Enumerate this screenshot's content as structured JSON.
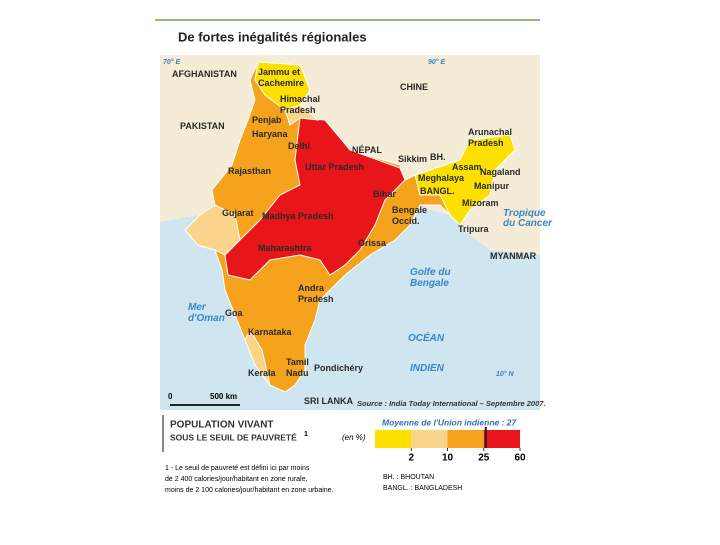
{
  "header": {
    "title": "De fortes inégalités régionales"
  },
  "map": {
    "coordinates": [
      "70° E",
      "90° E",
      "10° N"
    ],
    "labels": [
      [
        "AFGHANISTAN"
      ],
      [
        "Jammu et",
        "Cachemire"
      ],
      [
        "CHINE"
      ],
      [
        "Himachal",
        "Pradesh"
      ],
      [
        "Penjab"
      ],
      [
        "PAKISTAN"
      ],
      [
        "Haryana"
      ],
      [
        "Delhi"
      ],
      [
        "NÉPAL"
      ],
      [
        "Arunachal",
        "Pradesh"
      ],
      [
        "Uttar Pradesh"
      ],
      [
        "Sikkim"
      ],
      [
        "BH."
      ],
      [
        "Assam"
      ],
      [
        "Nagaland"
      ],
      [
        "Rajasthan"
      ],
      [
        "Meghalaya"
      ],
      [
        "Manipur"
      ],
      [
        "Bihar"
      ],
      [
        "BANGL."
      ],
      [
        "Mizoram"
      ],
      [
        "Bengale",
        "Occid."
      ],
      [
        "Gujarat"
      ],
      [
        "Madhya Pradesh"
      ],
      [
        "Tripura"
      ],
      [
        "Maharashtra"
      ],
      [
        "Orissa"
      ],
      [
        "MYANMAR"
      ],
      [
        "Golfe du",
        "Bengale"
      ],
      [
        "Andra",
        "Pradesh"
      ],
      [
        "Mer",
        "d'Oman"
      ],
      [
        "Goa"
      ],
      [
        "Karnataka"
      ],
      [
        "OCÉAN"
      ],
      [
        "INDIEN"
      ],
      [
        "Tamil",
        "Nadu"
      ],
      [
        "Kerala"
      ],
      [
        "Pondichéry"
      ],
      [
        "SRI LANKA"
      ]
    ],
    "tropic": [
      "Tropique",
      "du Cancer"
    ],
    "scale_bar": {
      "start": "0",
      "end": "500 km"
    },
    "source": "Source : India Today International – Septembre 2007."
  },
  "legend": {
    "title": "POPULATION VIVANT",
    "subtitle": "SOUS LE SEUIL DE PAUVRETÉ",
    "note_mark": "1",
    "unit": "(en %)",
    "breaks": [
      2,
      10,
      25,
      60
    ],
    "colors": [
      "#fde000",
      "#f9d48a",
      "#f5a21c",
      "#e8161b"
    ],
    "average": {
      "label": "Moyenne de l'Union indienne : 27",
      "value": 27
    }
  },
  "footnote": [
    "1 - Le seuil de pauvreté est défini ici par moins",
    "de 2 400 calories/jour/habitant en zone rurale,",
    "moins de 2 100 calories/jour/habitant en zone urbaine."
  ],
  "abbreviations": [
    "BH. : BHOUTAN",
    "BANGL. : BANGLADESH"
  ]
}
